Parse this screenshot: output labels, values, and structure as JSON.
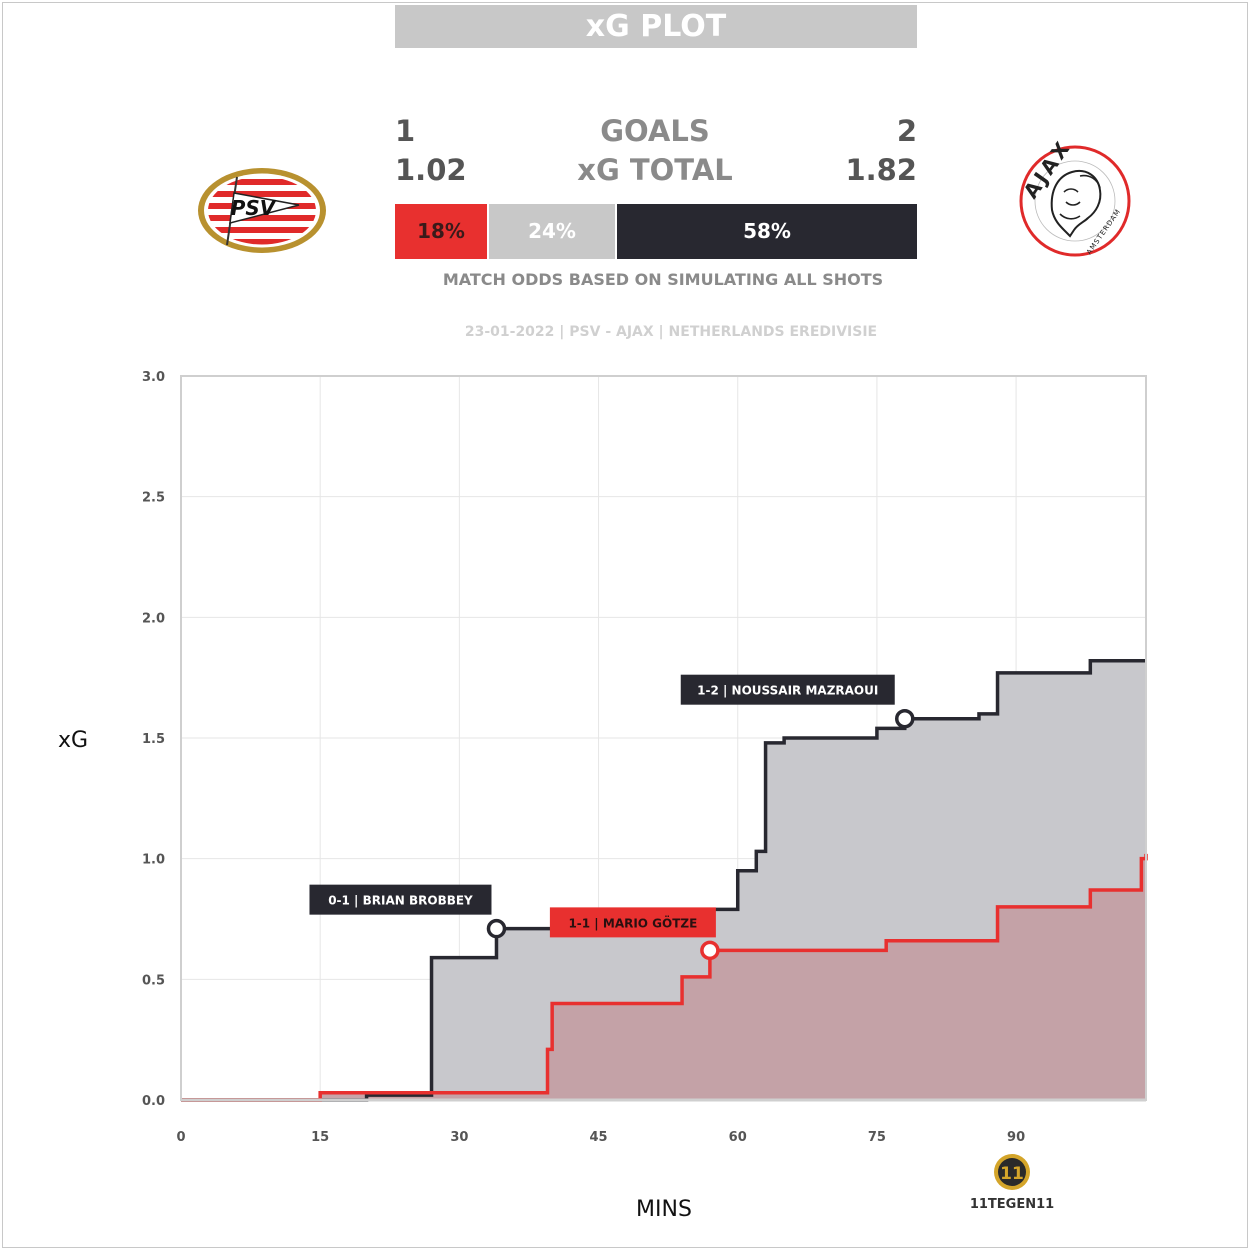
{
  "header": {
    "title": "xG PLOT"
  },
  "match": {
    "home_goals": "1",
    "away_goals": "2",
    "goals_label": "GOALS",
    "home_xg": "1.02",
    "away_xg": "1.82",
    "xg_label": "xG TOTAL",
    "odds": {
      "home": "18%",
      "draw": "24%",
      "away": "58%"
    },
    "odds_note": "MATCH ODDS BASED ON SIMULATING ALL SHOTS",
    "info": "23-01-2022 | PSV - AJAX | NETHERLANDS EREDIVISIE"
  },
  "logos": {
    "home_text": "PSV",
    "away_text": "AJAX",
    "away_subtext": "AMSTERDAM"
  },
  "brand": {
    "text": "11TEGEN11"
  },
  "colors": {
    "home": "#e8302f",
    "away": "#282830",
    "home_fill": "#c4a0a4",
    "away_fill": "#c8c8cc",
    "grid": "#e6e6e6"
  },
  "chart_data": {
    "type": "line",
    "xlabel": "MINS",
    "ylabel": "xG",
    "xlim": [
      0,
      104
    ],
    "ylim": [
      0,
      3
    ],
    "x_ticks": [
      0,
      15,
      30,
      45,
      60,
      75,
      90
    ],
    "y_ticks": [
      0.0,
      0.5,
      1.0,
      1.5,
      2.0,
      2.5,
      3.0
    ],
    "y_tick_labels": [
      "0.0",
      "0.5",
      "1.0",
      "1.5",
      "2.0",
      "2.5",
      "3.0"
    ],
    "grid": true,
    "step": true,
    "series": [
      {
        "team": "away",
        "points": [
          [
            0,
            0
          ],
          [
            20,
            0.02
          ],
          [
            27,
            0.59
          ],
          [
            34,
            0.71
          ],
          [
            56,
            0.79
          ],
          [
            60,
            0.95
          ],
          [
            62,
            1.03
          ],
          [
            63,
            1.48
          ],
          [
            65,
            1.5
          ],
          [
            75,
            1.54
          ],
          [
            78,
            1.58
          ],
          [
            86,
            1.6
          ],
          [
            88,
            1.77
          ],
          [
            98,
            1.82
          ],
          [
            104,
            1.82
          ]
        ]
      },
      {
        "team": "home",
        "points": [
          [
            0,
            0
          ],
          [
            15,
            0.03
          ],
          [
            39.5,
            0.21
          ],
          [
            40,
            0.4
          ],
          [
            54,
            0.51
          ],
          [
            57,
            0.62
          ],
          [
            76,
            0.66
          ],
          [
            88,
            0.8
          ],
          [
            98,
            0.87
          ],
          [
            103.5,
            1.0
          ],
          [
            104,
            1.02
          ]
        ]
      }
    ],
    "annotations": [
      {
        "team": "away",
        "x": 34,
        "y": 0.71,
        "label": "0-1 | BRIAN BROBBEY"
      },
      {
        "team": "home",
        "x": 57,
        "y": 0.62,
        "label": "1-1 | MARIO GÖTZE"
      },
      {
        "team": "away",
        "x": 78,
        "y": 1.58,
        "label": "1-2 | NOUSSAIR MAZRAOUI"
      }
    ]
  }
}
